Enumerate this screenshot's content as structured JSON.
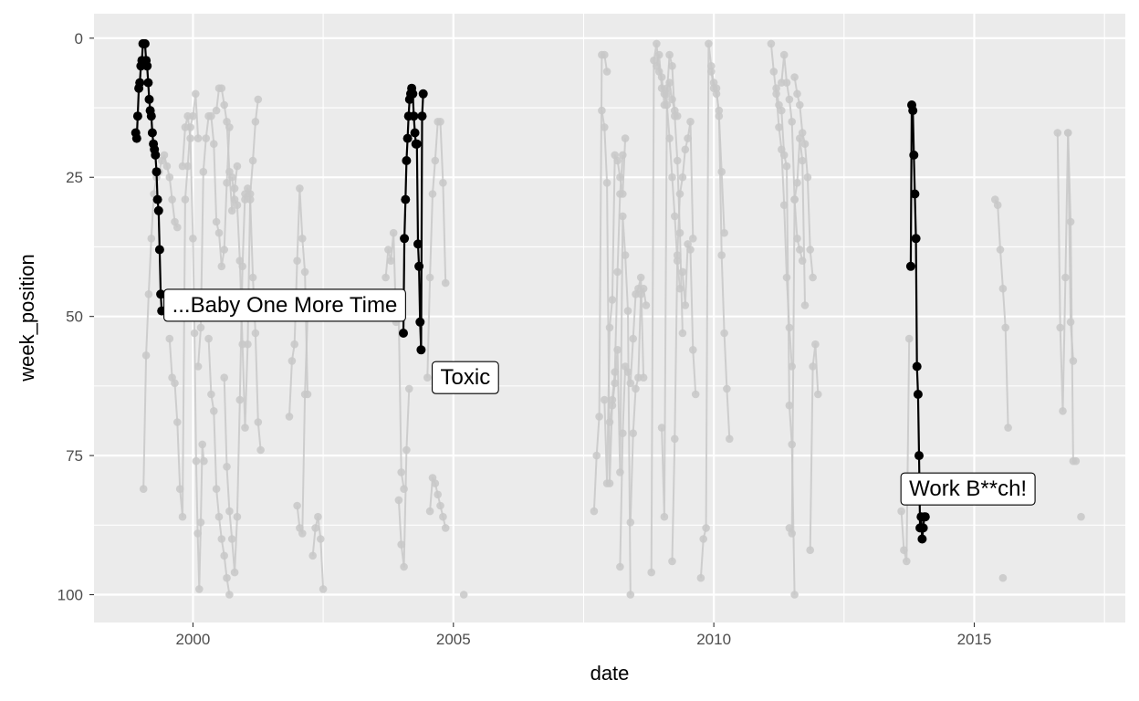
{
  "chart_data": {
    "type": "line",
    "title": "",
    "xlabel": "date",
    "ylabel": "week_position",
    "x_axis_kind": "decimal-year",
    "xlim": [
      1998.1,
      2017.9
    ],
    "ylim": [
      -4.4,
      105
    ],
    "y_reversed": true,
    "x_ticks": [
      2000,
      2005,
      2010,
      2015
    ],
    "y_ticks": [
      0,
      25,
      50,
      75,
      100
    ],
    "grid": true,
    "legend": "none",
    "colors": {
      "panel": "#EBEBEB",
      "grid": "#FFFFFF",
      "background_series": "#C8C8C8",
      "highlight_series": "#000000"
    },
    "highlight_series": [
      {
        "name": "...Baby One More Time",
        "x": [
          1998.9,
          1998.92,
          1998.94,
          1998.96,
          1998.98,
          1999.0,
          1999.02,
          1999.04,
          1999.06,
          1999.08,
          1999.1,
          1999.12,
          1999.14,
          1999.16,
          1999.18,
          1999.2,
          1999.22,
          1999.24,
          1999.26,
          1999.28,
          1999.3,
          1999.32,
          1999.34,
          1999.36,
          1999.38,
          1999.4
        ],
        "y": [
          17,
          18,
          14,
          9,
          8,
          5,
          4,
          1,
          1,
          1,
          4,
          5,
          8,
          11,
          13,
          14,
          17,
          19,
          20,
          21,
          24,
          29,
          31,
          38,
          46,
          49
        ],
        "label": "...Baby One More Time"
      },
      {
        "name": "Toxic",
        "x": [
          2004.04,
          2004.06,
          2004.08,
          2004.1,
          2004.12,
          2004.14,
          2004.16,
          2004.18,
          2004.2,
          2004.22,
          2004.24,
          2004.26,
          2004.28,
          2004.3,
          2004.32,
          2004.34,
          2004.36,
          2004.38,
          2004.4,
          2004.42
        ],
        "y": [
          53,
          36,
          29,
          22,
          18,
          14,
          11,
          10,
          9,
          10,
          14,
          17,
          19,
          19,
          37,
          41,
          51,
          56,
          14,
          10
        ],
        "label": "Toxic"
      },
      {
        "name": "Work B**ch!",
        "x": [
          2013.78,
          2013.8,
          2013.82,
          2013.84,
          2013.86,
          2013.88,
          2013.9,
          2013.92,
          2013.94,
          2013.96,
          2013.98,
          2014.0,
          2014.02,
          2014.04,
          2014.06
        ],
        "y": [
          41,
          12,
          13,
          21,
          28,
          36,
          59,
          64,
          75,
          88,
          86,
          90,
          88,
          86,
          86
        ],
        "label": "Work B**ch!"
      }
    ],
    "background_series": [
      {
        "x": [
          1999.05,
          1999.1,
          1999.15,
          1999.2,
          1999.25,
          1999.3,
          1999.35,
          1999.4,
          1999.45,
          1999.5,
          1999.55,
          1999.6,
          1999.65,
          1999.7
        ],
        "y": [
          81,
          57,
          46,
          36,
          28,
          25,
          24,
          22,
          21,
          23,
          25,
          29,
          33,
          34
        ]
      },
      {
        "x": [
          1999.55,
          1999.6,
          1999.65,
          1999.7,
          1999.75,
          1999.8,
          1999.85,
          1999.9,
          1999.95,
          2000.0,
          2000.05,
          2000.1
        ],
        "y": [
          54,
          61,
          62,
          69,
          81,
          86,
          29,
          23,
          16,
          14,
          10,
          18
        ]
      },
      {
        "x": [
          1999.8,
          1999.85,
          1999.9,
          1999.95,
          2000.0,
          2000.03,
          2000.06,
          2000.09,
          2000.12,
          2000.15,
          2000.18,
          2000.21
        ],
        "y": [
          23,
          16,
          14,
          18,
          36,
          53,
          76,
          89,
          99,
          87,
          73,
          76
        ]
      },
      {
        "x": [
          2000.1,
          2000.15,
          2000.2,
          2000.25,
          2000.3,
          2000.35,
          2000.4,
          2000.45,
          2000.5,
          2000.55,
          2000.6,
          2000.65,
          2000.7
        ],
        "y": [
          59,
          52,
          24,
          18,
          14,
          14,
          19,
          33,
          35,
          41,
          38,
          26,
          16
        ]
      },
      {
        "x": [
          2000.3,
          2000.35,
          2000.4,
          2000.45,
          2000.5,
          2000.55,
          2000.6,
          2000.65,
          2000.7
        ],
        "y": [
          54,
          64,
          67,
          81,
          86,
          90,
          93,
          97,
          100
        ]
      },
      {
        "x": [
          2000.45,
          2000.5,
          2000.55,
          2000.6,
          2000.65,
          2000.7,
          2000.75,
          2000.8,
          2000.85
        ],
        "y": [
          13,
          9,
          9,
          12,
          15,
          24,
          31,
          27,
          23
        ]
      },
      {
        "x": [
          2000.6,
          2000.65,
          2000.7,
          2000.75,
          2000.8,
          2000.85,
          2000.9,
          2000.95,
          2001.0
        ],
        "y": [
          61,
          77,
          85,
          90,
          96,
          86,
          65,
          41,
          28
        ]
      },
      {
        "x": [
          2000.75,
          2000.8,
          2000.85,
          2000.9,
          2000.95,
          2001.0,
          2001.05,
          2001.1,
          2001.15,
          2001.2,
          2001.25
        ],
        "y": [
          25,
          29,
          30,
          40,
          55,
          70,
          55,
          28,
          22,
          15,
          11
        ]
      },
      {
        "x": [
          2001.0,
          2001.05,
          2001.1,
          2001.15,
          2001.2,
          2001.25,
          2001.3
        ],
        "y": [
          29,
          27,
          29,
          43,
          53,
          69,
          74
        ]
      },
      {
        "x": [
          2001.85,
          2001.9,
          2001.95,
          2002.0,
          2002.05,
          2002.1,
          2002.15,
          2002.2
        ],
        "y": [
          68,
          58,
          55,
          40,
          27,
          36,
          42,
          64
        ]
      },
      {
        "x": [
          2002.0,
          2002.05,
          2002.1,
          2002.15,
          2002.2
        ],
        "y": [
          84,
          88,
          89,
          64,
          50
        ]
      },
      {
        "x": [
          2002.3,
          2002.35,
          2002.4,
          2002.45,
          2002.5
        ],
        "y": [
          93,
          88,
          86,
          90,
          99
        ]
      },
      {
        "x": [
          2003.7,
          2003.75,
          2003.8,
          2003.85,
          2003.9,
          2003.95,
          2004.0,
          2004.05
        ],
        "y": [
          43,
          38,
          40,
          35,
          51,
          50,
          78,
          81
        ]
      },
      {
        "x": [
          2003.95,
          2004.0,
          2004.05,
          2004.1,
          2004.15
        ],
        "y": [
          83,
          91,
          95,
          74,
          63
        ]
      },
      {
        "x": [
          2004.5,
          2004.55,
          2004.6,
          2004.65,
          2004.7,
          2004.75,
          2004.8,
          2004.85
        ],
        "y": [
          61,
          43,
          28,
          22,
          15,
          15,
          26,
          44
        ]
      },
      {
        "x": [
          2004.55,
          2004.6,
          2004.65,
          2004.7,
          2004.75,
          2004.8,
          2004.85
        ],
        "y": [
          85,
          79,
          80,
          82,
          84,
          86,
          88
        ]
      },
      {
        "x": [
          2005.2
        ],
        "y": [
          100
        ]
      },
      {
        "x": [
          2007.7,
          2007.75,
          2007.8,
          2007.85,
          2007.9,
          2007.95
        ],
        "y": [
          85,
          75,
          68,
          3,
          3,
          6
        ]
      },
      {
        "x": [
          2007.85,
          2007.9,
          2007.95,
          2008.0,
          2008.05,
          2008.1,
          2008.15,
          2008.2,
          2008.25
        ],
        "y": [
          13,
          16,
          26,
          80,
          65,
          60,
          42,
          28,
          21
        ]
      },
      {
        "x": [
          2007.9,
          2007.95,
          2008.0,
          2008.05,
          2008.1,
          2008.15,
          2008.2,
          2008.25,
          2008.3
        ],
        "y": [
          65,
          80,
          52,
          47,
          21,
          22,
          25,
          28,
          18
        ]
      },
      {
        "x": [
          2008.0,
          2008.05,
          2008.1,
          2008.15,
          2008.2,
          2008.25,
          2008.3,
          2008.35,
          2008.4
        ],
        "y": [
          69,
          66,
          62,
          56,
          78,
          32,
          39,
          49,
          100
        ]
      },
      {
        "x": [
          2008.2,
          2008.25,
          2008.3,
          2008.35,
          2008.4,
          2008.45,
          2008.5,
          2008.55,
          2008.6,
          2008.65
        ],
        "y": [
          95,
          71,
          59,
          60,
          62,
          54,
          46,
          45,
          43,
          61
        ]
      },
      {
        "x": [
          2008.4,
          2008.45,
          2008.5,
          2008.55,
          2008.6,
          2008.65,
          2008.7
        ],
        "y": [
          87,
          71,
          63,
          61,
          46,
          45,
          48
        ]
      },
      {
        "x": [
          2008.8,
          2008.85,
          2008.9,
          2008.95,
          2009.0,
          2009.05,
          2009.1,
          2009.15,
          2009.2,
          2009.25,
          2009.3
        ],
        "y": [
          96,
          4,
          1,
          6,
          7,
          12,
          9,
          8,
          11,
          13,
          14
        ]
      },
      {
        "x": [
          2008.9,
          2008.95,
          2009.0,
          2009.05,
          2009.1,
          2009.15,
          2009.2,
          2009.25,
          2009.3,
          2009.35
        ],
        "y": [
          5,
          3,
          9,
          10,
          12,
          18,
          25,
          32,
          40,
          45
        ]
      },
      {
        "x": [
          2009.0,
          2009.05,
          2009.1,
          2009.15,
          2009.2,
          2009.25,
          2009.3,
          2009.35,
          2009.4
        ],
        "y": [
          70,
          86,
          10,
          3,
          5,
          14,
          22,
          35,
          53
        ]
      },
      {
        "x": [
          2009.2,
          2009.25,
          2009.3,
          2009.35,
          2009.4,
          2009.45,
          2009.5,
          2009.55,
          2009.6
        ],
        "y": [
          94,
          72,
          39,
          28,
          25,
          20,
          18,
          15,
          36
        ]
      },
      {
        "x": [
          2009.4,
          2009.45,
          2009.5,
          2009.55,
          2009.6,
          2009.65
        ],
        "y": [
          42,
          48,
          37,
          38,
          56,
          64
        ]
      },
      {
        "x": [
          2009.75,
          2009.8,
          2009.85,
          2009.9,
          2009.95,
          2010.0,
          2010.05,
          2010.1,
          2010.15,
          2010.2
        ],
        "y": [
          97,
          90,
          88,
          1,
          5,
          8,
          9,
          14,
          24,
          35
        ]
      },
      {
        "x": [
          2009.95,
          2010.0,
          2010.05,
          2010.1,
          2010.15,
          2010.2,
          2010.25,
          2010.3
        ],
        "y": [
          6,
          9,
          10,
          13,
          39,
          53,
          63,
          72
        ]
      },
      {
        "x": [
          2011.1,
          2011.15,
          2011.2,
          2011.25,
          2011.3,
          2011.35,
          2011.4,
          2011.45,
          2011.5
        ],
        "y": [
          1,
          6,
          10,
          16,
          20,
          30,
          43,
          52,
          59
        ]
      },
      {
        "x": [
          2011.2,
          2011.25,
          2011.3,
          2011.35,
          2011.4,
          2011.45,
          2011.5,
          2011.55
        ],
        "y": [
          9,
          12,
          13,
          21,
          23,
          66,
          73,
          100
        ]
      },
      {
        "x": [
          2011.3,
          2011.35,
          2011.4,
          2011.45,
          2011.5,
          2011.55,
          2011.6,
          2011.65,
          2011.7
        ],
        "y": [
          8,
          3,
          8,
          11,
          15,
          29,
          36,
          38,
          40
        ]
      },
      {
        "x": [
          2011.45,
          2011.5,
          2011.55,
          2011.6,
          2011.65,
          2011.7,
          2011.75
        ],
        "y": [
          88,
          89,
          29,
          26,
          18,
          22,
          48
        ]
      },
      {
        "x": [
          2011.55,
          2011.6,
          2011.65,
          2011.7,
          2011.75,
          2011.8,
          2011.85,
          2011.9
        ],
        "y": [
          7,
          10,
          12,
          17,
          19,
          25,
          38,
          43
        ]
      },
      {
        "x": [
          2011.85,
          2011.9,
          2011.95,
          2012.0
        ],
        "y": [
          92,
          59,
          55,
          64
        ]
      },
      {
        "x": [
          2013.6,
          2013.65,
          2013.7,
          2013.75
        ],
        "y": [
          85,
          92,
          94,
          54
        ]
      },
      {
        "x": [
          2015.4,
          2015.45,
          2015.5,
          2015.55,
          2015.6,
          2015.65
        ],
        "y": [
          29,
          30,
          38,
          45,
          52,
          70
        ]
      },
      {
        "x": [
          2015.55
        ],
        "y": [
          97
        ]
      },
      {
        "x": [
          2016.6,
          2016.65,
          2016.7,
          2016.75,
          2016.8,
          2016.85,
          2016.9
        ],
        "y": [
          17,
          52,
          67,
          43,
          17,
          51,
          58
        ]
      },
      {
        "x": [
          2016.8,
          2016.85,
          2016.9,
          2016.95
        ],
        "y": [
          17,
          33,
          76,
          76
        ]
      },
      {
        "x": [
          2017.05
        ],
        "y": [
          86
        ]
      }
    ],
    "annotations": [
      {
        "text": "...Baby One More Time",
        "x": 1999.6,
        "y": 48
      },
      {
        "text": "Toxic",
        "x": 2004.75,
        "y": 61
      },
      {
        "text": "Work B**ch!",
        "x": 2013.75,
        "y": 81
      }
    ]
  }
}
